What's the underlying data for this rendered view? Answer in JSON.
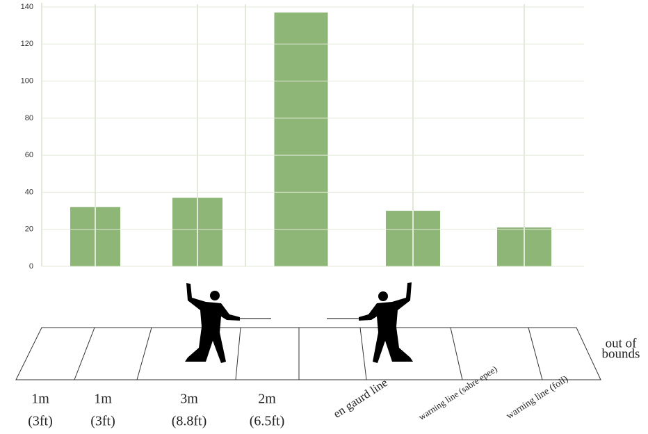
{
  "chart_data": {
    "type": "bar",
    "categories": [
      null,
      null,
      null,
      null,
      null
    ],
    "values": [
      32,
      37,
      137,
      30,
      21
    ],
    "color": "#8db677",
    "ylim": [
      0,
      140
    ],
    "yticks": [
      0,
      20,
      40,
      60,
      80,
      100,
      120,
      140
    ],
    "grid": true
  },
  "piste": {
    "zones": [
      {
        "length": "1m",
        "imperial": "(3ft)"
      },
      {
        "length": "1m",
        "imperial": "(3ft)"
      },
      {
        "length": "3m",
        "imperial": "(8.8ft)"
      },
      {
        "length": "2m",
        "imperial": "(6.5ft)"
      }
    ],
    "lines": [
      "en gaurd line",
      "warning line (sabre epee)",
      "warning line (foil)"
    ],
    "out_of_bounds": [
      "out of",
      "bounds"
    ]
  }
}
